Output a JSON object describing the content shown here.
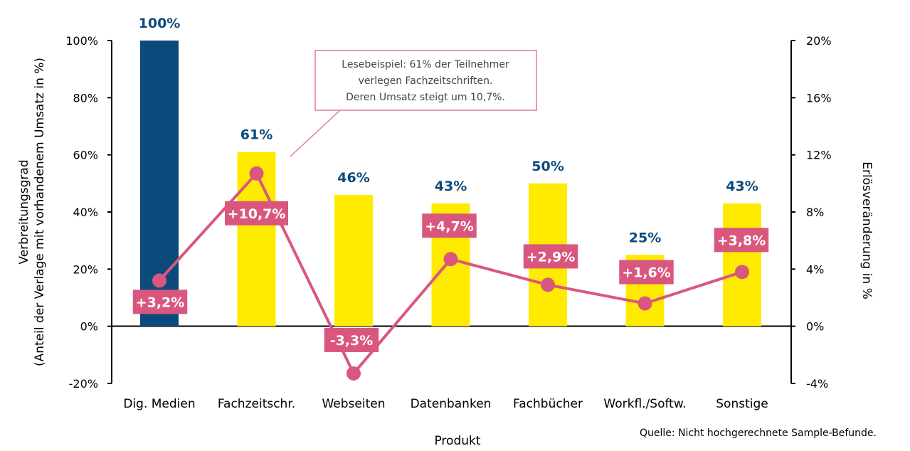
{
  "chart_data": {
    "type": "bar",
    "title": "",
    "xlabel": "Produkt",
    "ylabel_left_line1": "Verbreitungsgrad",
    "ylabel_left_line2": "(Anteil der Verlage mit vorhandenem Umsatz in %)",
    "ylabel_right": "Erlösveränderung in %",
    "categories": [
      "Dig. Medien",
      "Fachzeitschr.",
      "Webseiten",
      "Datenbanken",
      "Fachbücher",
      "Workfl./Softw.",
      "Sonstige"
    ],
    "series": [
      {
        "name": "",
        "kind": "bar",
        "axis": "left",
        "values": [
          100,
          61,
          46,
          43,
          50,
          25,
          43
        ],
        "labels": [
          "100%",
          "61%",
          "46%",
          "43%",
          "50%",
          "25%",
          "43%"
        ],
        "colors": [
          "#0d4a7c",
          "#ffeb00",
          "#ffeb00",
          "#ffeb00",
          "#ffeb00",
          "#ffeb00",
          "#ffeb00"
        ]
      },
      {
        "name": "",
        "kind": "line",
        "axis": "right",
        "values": [
          3.2,
          10.7,
          -3.3,
          4.7,
          2.9,
          1.6,
          3.8
        ],
        "labels": [
          "+3,2%",
          "+10,7%",
          "-3,3%",
          "+4,7%",
          "+2,9%",
          "+1,6%",
          "+3,8%"
        ],
        "color": "#d9577e"
      }
    ],
    "ylim_left": [
      -20,
      100
    ],
    "yticks_left": [
      "100%",
      "80%",
      "60%",
      "40%",
      "20%",
      "0%",
      "-20%"
    ],
    "ylim_right": [
      -4,
      20
    ],
    "yticks_right": [
      "20%",
      "16%",
      "12%",
      "8%",
      "4%",
      "0%",
      "-4%"
    ],
    "grid": false,
    "annotation": {
      "lines": [
        "Lesebeispiel: 61% der Teilnehmer",
        "verlegen Fachzeitschriften.",
        "Deren Umsatz steigt um 10,7%."
      ],
      "border_color": "#e07a96"
    }
  },
  "source": "Quelle: Nicht hochgerechnete Sample-Befunde."
}
